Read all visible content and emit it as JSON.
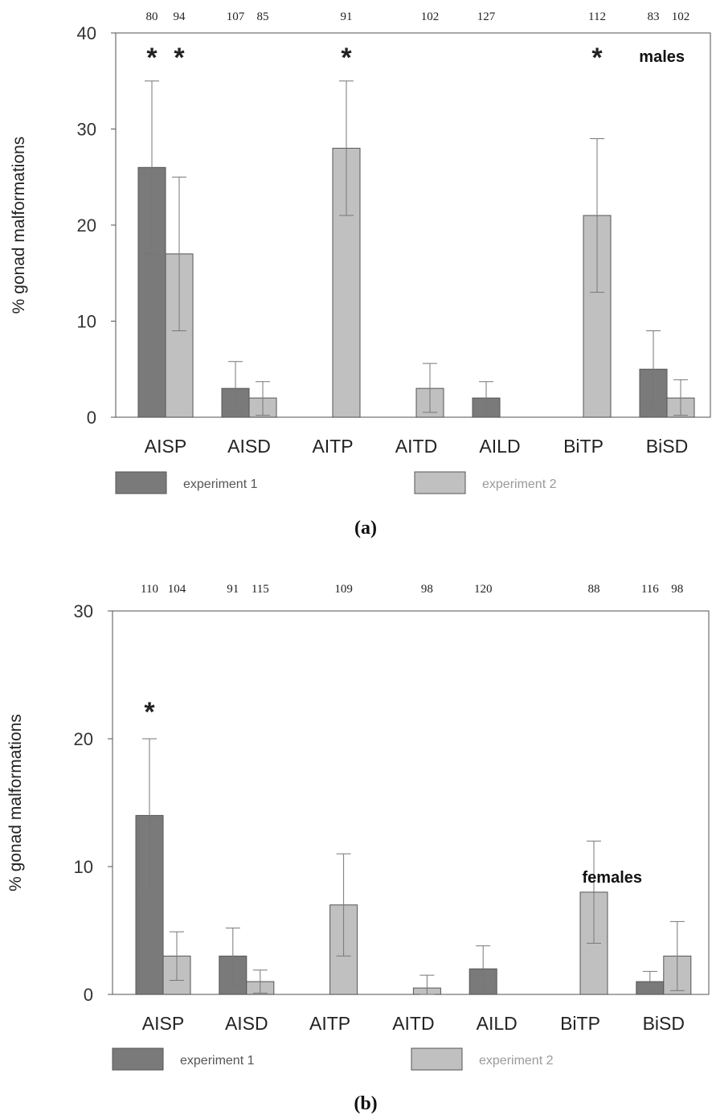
{
  "chart_data": [
    {
      "type": "bar",
      "panel_label": "(a)",
      "annotation": "males",
      "ylabel": "% gonad malformations",
      "ylim": [
        0,
        40
      ],
      "yticks": [
        "0",
        "10",
        "20",
        "30",
        "40"
      ],
      "categories": [
        "AISP",
        "AISD",
        "AITP",
        "AITD",
        "AILD",
        "BiTP",
        "BiSD"
      ],
      "series": [
        {
          "name": "experiment 1",
          "color": "#7a7a7a",
          "values": [
            26,
            3,
            null,
            null,
            2,
            null,
            5
          ],
          "err_low": [
            17,
            0.5,
            null,
            null,
            0.3,
            null,
            1
          ],
          "err_high": [
            35,
            5.8,
            null,
            null,
            3.7,
            null,
            9
          ],
          "n": [
            "80",
            "107",
            "",
            "",
            "127",
            "",
            "83"
          ],
          "sig": [
            "*",
            "",
            "",
            "",
            "",
            "",
            ""
          ]
        },
        {
          "name": "experiment 2",
          "color": "#c0c0c0",
          "values": [
            17,
            2,
            28,
            3,
            null,
            21,
            2
          ],
          "err_low": [
            9,
            0.2,
            21,
            0.5,
            null,
            13,
            0.2
          ],
          "err_high": [
            25,
            3.7,
            35,
            5.6,
            null,
            29,
            3.9
          ],
          "n": [
            "94",
            "85",
            "91",
            "102",
            "",
            "112",
            "102"
          ],
          "sig": [
            "*",
            "",
            "*",
            "",
            "",
            "*",
            ""
          ]
        }
      ]
    },
    {
      "type": "bar",
      "panel_label": "(b)",
      "annotation": "females",
      "ylabel": "% gonad malformations",
      "ylim": [
        0,
        30
      ],
      "yticks": [
        "0",
        "10",
        "20",
        "30"
      ],
      "categories": [
        "AISP",
        "AISD",
        "AITP",
        "AITD",
        "AILD",
        "BiTP",
        "BiSD"
      ],
      "series": [
        {
          "name": "experiment 1",
          "color": "#7a7a7a",
          "values": [
            14,
            3,
            null,
            null,
            2,
            null,
            1
          ],
          "err_low": [
            8,
            0.8,
            null,
            null,
            0.2,
            null,
            0.2
          ],
          "err_high": [
            20,
            5.2,
            null,
            null,
            3.8,
            null,
            1.8
          ],
          "n": [
            "110",
            "91",
            "",
            "",
            "120",
            "",
            "116"
          ],
          "sig": [
            "*",
            "",
            "",
            "",
            "",
            "",
            ""
          ]
        },
        {
          "name": "experiment 2",
          "color": "#c0c0c0",
          "values": [
            3,
            1,
            7,
            0.5,
            null,
            8,
            3
          ],
          "err_low": [
            1.1,
            0.1,
            3,
            0,
            null,
            4,
            0.3
          ],
          "err_high": [
            4.9,
            1.9,
            11,
            1.5,
            null,
            12,
            5.7
          ],
          "n": [
            "104",
            "115",
            "109",
            "98",
            "",
            "88",
            "98"
          ],
          "sig": [
            "",
            "",
            "",
            "",
            "",
            "",
            ""
          ]
        }
      ]
    }
  ]
}
